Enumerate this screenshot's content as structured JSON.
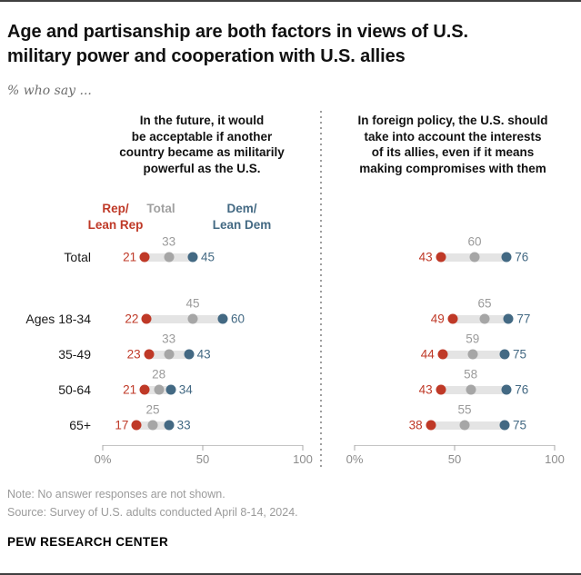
{
  "header": {
    "title_lines": [
      "Age and partisanship are both factors in views of U.S.",
      "military power and cooperation with U.S. allies"
    ],
    "subtitle": "% who say ..."
  },
  "legend": {
    "rep": {
      "lines": [
        "Rep/",
        "Lean Rep"
      ]
    },
    "total": {
      "lines": [
        "Total"
      ]
    },
    "dem": {
      "lines": [
        "Dem/",
        "Lean Dem"
      ]
    }
  },
  "chart_data": {
    "type": "dot-plot",
    "categories": [
      "Total",
      "Ages 18-34",
      "35-49",
      "50-64",
      "65+"
    ],
    "series_names": [
      "Rep/Lean Rep",
      "Total",
      "Dem/Lean Dem"
    ],
    "xlim": [
      0,
      100
    ],
    "ticks": [
      {
        "value": 0,
        "label": "0%"
      },
      {
        "value": 50,
        "label": "50"
      },
      {
        "value": 100,
        "label": "100"
      }
    ],
    "colors": {
      "rep": "#bf3927",
      "dem": "#436983",
      "total_dot": "#a6a6a6",
      "total_label": "#9b9b9b",
      "bar": "#e4e4e4"
    },
    "panels": [
      {
        "title_lines": [
          "In the future, it would",
          "be acceptable if another",
          "country became as militarily",
          "powerful as the U.S."
        ],
        "values": {
          "rep": [
            21,
            22,
            23,
            21,
            17
          ],
          "total": [
            33,
            45,
            33,
            28,
            25
          ],
          "dem": [
            45,
            60,
            43,
            34,
            33
          ]
        }
      },
      {
        "title_lines": [
          "In foreign policy, the U.S. should",
          "take into account the interests",
          "of its allies, even if it means",
          "making compromises with them"
        ],
        "values": {
          "rep": [
            43,
            49,
            44,
            43,
            38
          ],
          "total": [
            60,
            65,
            59,
            58,
            55
          ],
          "dem": [
            76,
            77,
            75,
            76,
            75
          ]
        }
      }
    ]
  },
  "footer": {
    "note": "Note: No answer responses are not shown.",
    "source": "Source: Survey of U.S. adults conducted April 8-14, 2024.",
    "brand": "PEW RESEARCH CENTER"
  }
}
